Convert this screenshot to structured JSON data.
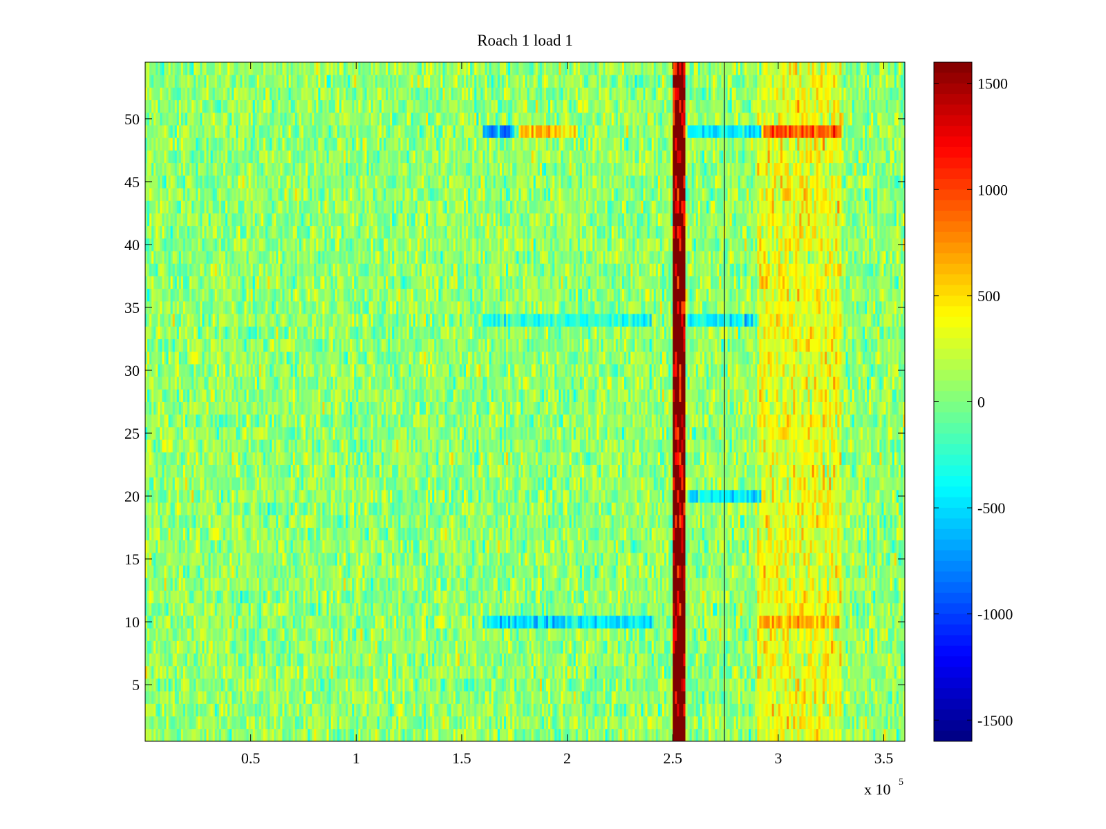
{
  "chart_data": {
    "type": "heatmap",
    "title": "Roach 1 load 1",
    "xlabel": "",
    "ylabel": "",
    "colormap": "jet",
    "x_range": [
      0,
      360000
    ],
    "y_range": [
      0.5,
      54.5
    ],
    "x_ticks": [
      50000,
      100000,
      150000,
      200000,
      250000,
      300000,
      350000
    ],
    "x_tick_labels": [
      "0.5",
      "1",
      "1.5",
      "2",
      "2.5",
      "3",
      "3.5"
    ],
    "x_multiplier": {
      "base": "x 10",
      "exponent": "5"
    },
    "y_ticks": [
      5,
      10,
      15,
      20,
      25,
      30,
      35,
      40,
      45,
      50
    ],
    "y_tick_labels": [
      "5",
      "10",
      "15",
      "20",
      "25",
      "30",
      "35",
      "40",
      "45",
      "50"
    ],
    "rows": 54,
    "columns": 360,
    "value_range": [
      -1600,
      1600
    ],
    "colorbar": {
      "ticks": [
        1500,
        1000,
        500,
        0,
        -500,
        -1000,
        -1500
      ],
      "tick_labels": [
        "1500",
        "1000",
        "500",
        "0",
        "-500",
        "-1000",
        "-1500"
      ]
    },
    "features": [
      {
        "kind": "vertical band",
        "x_range": [
          250000,
          256000
        ],
        "value": 1600
      },
      {
        "kind": "vertical line",
        "x": 274500
      },
      {
        "kind": "warm region",
        "x_range": [
          290000,
          330000
        ],
        "value": 350
      },
      {
        "kind": "row stripe",
        "y": 49,
        "x_range": [
          160000,
          175000
        ],
        "value": -700
      },
      {
        "kind": "row stripe",
        "y": 49,
        "x_range": [
          177000,
          205000
        ],
        "value": 550
      },
      {
        "kind": "row stripe",
        "y": 49,
        "x_range": [
          257000,
          292000
        ],
        "value": -450
      },
      {
        "kind": "row stripe",
        "y": 49,
        "x_range": [
          293000,
          330000
        ],
        "value": 900
      },
      {
        "kind": "row stripe",
        "y": 10,
        "x_range": [
          160000,
          240000
        ],
        "value": -450
      },
      {
        "kind": "row stripe",
        "y": 10,
        "x_range": [
          290000,
          330000
        ],
        "value": 650
      },
      {
        "kind": "row stripe",
        "y": 34,
        "x_range": [
          160000,
          240000
        ],
        "value": -300
      },
      {
        "kind": "row stripe",
        "y": 34,
        "x_range": [
          257000,
          290000
        ],
        "value": -400
      },
      {
        "kind": "row stripe",
        "y": 20,
        "x_range": [
          257000,
          292000
        ],
        "value": -450
      }
    ]
  }
}
